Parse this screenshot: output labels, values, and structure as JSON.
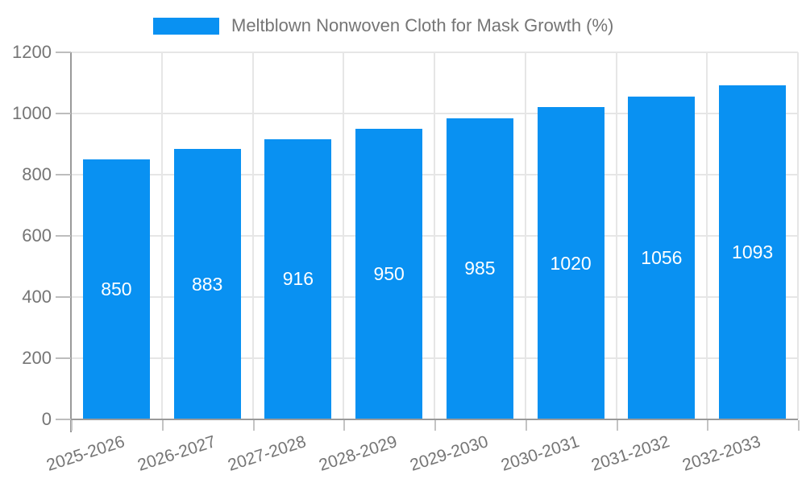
{
  "legend": {
    "swatch_color": "#0991F2",
    "label": "Meltblown Nonwoven Cloth for Mask Growth (%)"
  },
  "chart_data": {
    "type": "bar",
    "title": "Meltblown Nonwoven Cloth for Mask Growth (%)",
    "categories": [
      "2025-2026",
      "2026-2027",
      "2027-2028",
      "2028-2029",
      "2029-2030",
      "2030-2031",
      "2031-2032",
      "2032-2033"
    ],
    "values": [
      850,
      883,
      916,
      950,
      985,
      1020,
      1056,
      1093
    ],
    "xlabel": "",
    "ylabel": "",
    "ylim": [
      0,
      1200
    ],
    "yticks": [
      0,
      200,
      400,
      600,
      800,
      1000,
      1200
    ],
    "grid": true,
    "legend_position": "top-center",
    "x_label_rotation_deg": -18,
    "colors": {
      "bar": "#0991F2",
      "bar_value_text": "#FFFFFF",
      "axis_line": "#9A9A9A",
      "gridline": "#E6E6E6",
      "tick": "#C4C4C4",
      "axis_text": "#757575"
    }
  }
}
